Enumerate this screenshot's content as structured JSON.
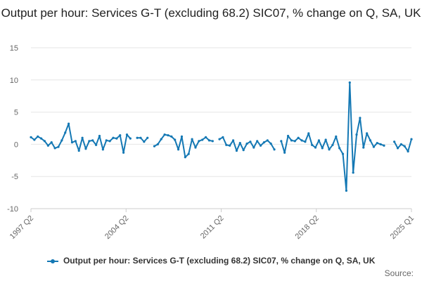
{
  "chart_data": {
    "type": "line",
    "title": "Output per hour: Services G-T (excluding 68.2) SIC07, % change on Q, SA, UK",
    "xlabel": "",
    "ylabel": "",
    "ylim": [
      -10,
      15
    ],
    "yticks": [
      15,
      10,
      5,
      0,
      -5,
      -10
    ],
    "x_ticks": [
      "1997 Q2",
      "2004 Q2",
      "2011 Q2",
      "2018 Q2",
      "2025 Q1"
    ],
    "grid": "horizontal",
    "legend": "bottom-center",
    "series": [
      {
        "name": "Output per hour: Services G-T (excluding 68.2) SIC07, % change on Q, SA, UK",
        "color": "#1478b4",
        "values": [
          1.1,
          0.7,
          1.2,
          0.9,
          0.5,
          -0.2,
          0.3,
          -0.6,
          -0.4,
          0.6,
          1.8,
          3.2,
          0.3,
          0.5,
          -1.0,
          1.0,
          -0.7,
          0.5,
          0.6,
          -0.1,
          1.3,
          -0.8,
          0.6,
          0.5,
          1.0,
          0.9,
          1.4,
          -1.3,
          1.5,
          0.9,
          null,
          1.0,
          1.0,
          0.4,
          1.0,
          null,
          -0.3,
          0.0,
          0.8,
          1.5,
          1.4,
          1.2,
          0.7,
          -0.8,
          1.2,
          -2.0,
          -1.5,
          0.8,
          -0.5,
          0.5,
          0.7,
          1.1,
          0.6,
          0.5,
          null,
          0.8,
          1.1,
          -0.1,
          -0.2,
          0.6,
          -1.0,
          0.2,
          -0.9,
          0.1,
          0.4,
          -0.5,
          0.5,
          -0.2,
          0.3,
          0.6,
          0.1,
          -0.8,
          null,
          0.5,
          -1.3,
          1.3,
          0.6,
          0.5,
          1.0,
          0.6,
          0.4,
          1.7,
          -0.1,
          -0.5,
          0.6,
          -0.6,
          0.7,
          -0.8,
          -0.1,
          1.2,
          -0.6,
          -1.5,
          -7.2,
          9.6,
          -4.4,
          1.5,
          4.1,
          -0.5,
          1.7,
          0.6,
          -0.4,
          0.2,
          0.0,
          -0.2,
          null,
          null,
          0.4,
          -0.6,
          0.0,
          -0.3,
          -1.1,
          0.8
        ]
      }
    ]
  },
  "legend_label": "Output per hour: Services G-T (excluding 68.2) SIC07, % change on Q, SA, UK",
  "source_label": "Source:"
}
